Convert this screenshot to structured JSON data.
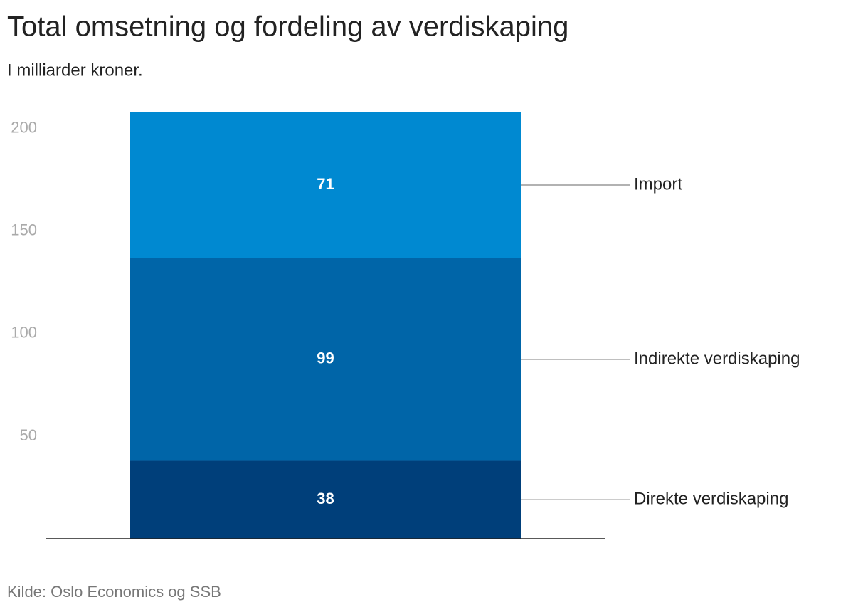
{
  "chart_data": {
    "type": "stacked-bar",
    "title": "Total omsetning og fordeling av verdiskaping",
    "subtitle": "I milliarder kroner.",
    "source": "Kilde: Oslo Economics og SSB",
    "series": [
      {
        "name": "Direkte verdiskaping",
        "color": "#003f7a",
        "values": [
          38
        ]
      },
      {
        "name": "Indirekte verdiskaping",
        "color": "#0065a8",
        "values": [
          99
        ]
      },
      {
        "name": "Import",
        "color": "#0089d1",
        "values": [
          71
        ]
      }
    ],
    "ylim": [
      0,
      210
    ],
    "yticks": [
      50,
      100,
      150,
      200
    ]
  }
}
